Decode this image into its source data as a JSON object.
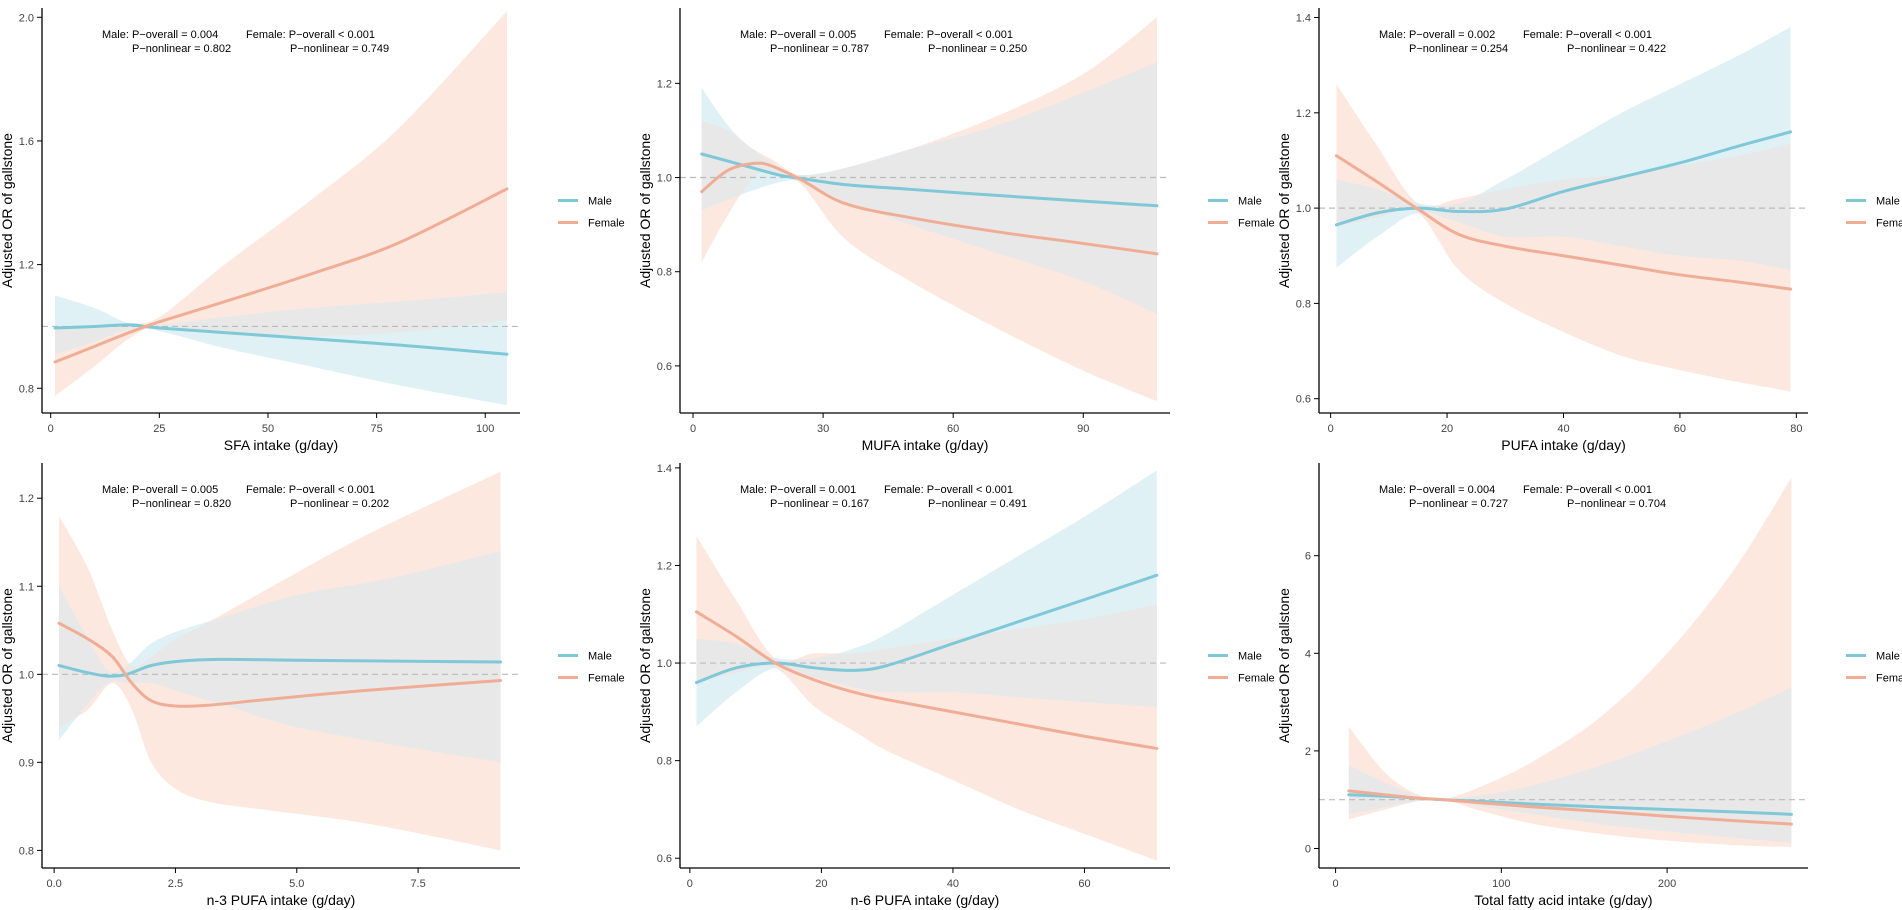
{
  "colors": {
    "male": "#7ec8d8",
    "female": "#f0ad96",
    "male_ci": "#dff1f5",
    "female_ci": "#fde8e0",
    "overlap_ci": "#e8e8e8",
    "reference": "#bbbbbb",
    "axis": "#000000"
  },
  "chart_data": [
    {
      "type": "line",
      "title": "",
      "xlabel": "SFA intake (g/day)",
      "ylabel": "Adjusted OR of gallstone",
      "xlim": [
        -2,
        108
      ],
      "ylim": [
        0.72,
        2.03
      ],
      "xticks": [
        0,
        25,
        50,
        75,
        100
      ],
      "xtick_labels": [
        "0",
        "25",
        "50",
        "75",
        "100"
      ],
      "yticks": [
        0.8,
        1.2,
        1.6,
        2.0
      ],
      "ytick_labels": [
        "0.8",
        "1.2",
        "1.6",
        "2.0"
      ],
      "reference_y": 1.0,
      "legend": {
        "position": "right",
        "entries": [
          "Male",
          "Female"
        ]
      },
      "annotation": {
        "male_overall": "Male: P−overall = 0.004",
        "male_nonlinear": "P−nonlinear = 0.802",
        "female_overall": "Female: P−overall < 0.001",
        "female_nonlinear": "P−nonlinear = 0.749"
      },
      "series": [
        {
          "name": "Male",
          "x": [
            1,
            10,
            18,
            25,
            40,
            60,
            80,
            105
          ],
          "y": [
            0.995,
            1.0,
            1.005,
            0.995,
            0.98,
            0.96,
            0.94,
            0.91
          ],
          "lower": [
            0.91,
            0.95,
            0.99,
            0.985,
            0.93,
            0.87,
            0.81,
            0.745
          ],
          "upper": [
            1.1,
            1.06,
            1.01,
            1.005,
            1.03,
            1.06,
            1.08,
            1.11
          ]
        },
        {
          "name": "Female",
          "x": [
            1,
            10,
            18,
            25,
            40,
            60,
            80,
            105
          ],
          "y": [
            0.885,
            0.935,
            0.98,
            1.015,
            1.08,
            1.17,
            1.27,
            1.445
          ],
          "lower": [
            0.775,
            0.87,
            0.96,
            1.0,
            0.98,
            0.97,
            0.98,
            1.02
          ],
          "upper": [
            1.0,
            1.0,
            1.01,
            1.03,
            1.2,
            1.41,
            1.64,
            2.02
          ]
        }
      ]
    },
    {
      "type": "line",
      "title": "",
      "xlabel": "MUFA intake (g/day)",
      "ylabel": "Adjusted OR of gallstone",
      "xlim": [
        -3,
        110
      ],
      "ylim": [
        0.5,
        1.36
      ],
      "xticks": [
        0,
        30,
        60,
        90
      ],
      "xtick_labels": [
        "0",
        "30",
        "60",
        "90"
      ],
      "yticks": [
        0.6,
        0.8,
        1.0,
        1.2
      ],
      "ytick_labels": [
        "0.6",
        "0.8",
        "1.0",
        "1.2"
      ],
      "reference_y": 1.0,
      "legend": {
        "position": "right",
        "entries": [
          "Male",
          "Female"
        ]
      },
      "annotation": {
        "male_overall": "Male: P−overall = 0.005",
        "male_nonlinear": "P−nonlinear = 0.787",
        "female_overall": "Female: P−overall < 0.001",
        "female_nonlinear": "P−nonlinear = 0.250"
      },
      "series": [
        {
          "name": "Male",
          "x": [
            2,
            10,
            20,
            25,
            35,
            50,
            70,
            90,
            107
          ],
          "y": [
            1.05,
            1.03,
            1.005,
            0.998,
            0.985,
            0.975,
            0.962,
            0.95,
            0.94
          ],
          "lower": [
            0.93,
            0.96,
            0.99,
            0.99,
            0.95,
            0.9,
            0.84,
            0.78,
            0.71
          ],
          "upper": [
            1.19,
            1.09,
            1.02,
            1.005,
            1.02,
            1.06,
            1.11,
            1.18,
            1.245
          ]
        },
        {
          "name": "Female",
          "x": [
            2,
            8,
            14,
            18,
            25,
            35,
            50,
            70,
            90,
            107
          ],
          "y": [
            0.97,
            1.015,
            1.03,
            1.025,
            0.995,
            0.945,
            0.915,
            0.885,
            0.86,
            0.838
          ],
          "lower": [
            0.82,
            0.92,
            1.0,
            1.01,
            0.985,
            0.87,
            0.78,
            0.68,
            0.59,
            0.525
          ],
          "upper": [
            1.12,
            1.1,
            1.06,
            1.04,
            1.005,
            1.02,
            1.06,
            1.13,
            1.22,
            1.34
          ]
        }
      ]
    },
    {
      "type": "line",
      "title": "",
      "xlabel": "PUFA intake (g/day)",
      "ylabel": "Adjusted OR of gallstone",
      "xlim": [
        -2,
        82
      ],
      "ylim": [
        0.57,
        1.42
      ],
      "xticks": [
        0,
        20,
        40,
        60,
        80
      ],
      "xtick_labels": [
        "0",
        "20",
        "40",
        "60",
        "80"
      ],
      "yticks": [
        0.6,
        0.8,
        1.0,
        1.2,
        1.4
      ],
      "ytick_labels": [
        "0.6",
        "0.8",
        "1.0",
        "1.2",
        "1.4"
      ],
      "reference_y": 1.0,
      "legend": {
        "position": "right",
        "entries": [
          "Male",
          "Female"
        ]
      },
      "annotation": {
        "male_overall": "Male: P−overall = 0.002",
        "male_nonlinear": "P−nonlinear = 0.254",
        "female_overall": "Female: P−overall < 0.001",
        "female_nonlinear": "P−nonlinear = 0.422"
      },
      "series": [
        {
          "name": "Male",
          "x": [
            1,
            8,
            15,
            22,
            30,
            40,
            50,
            60,
            70,
            79
          ],
          "y": [
            0.965,
            0.99,
            1.0,
            0.993,
            0.998,
            1.035,
            1.065,
            1.095,
            1.13,
            1.16
          ],
          "lower": [
            0.875,
            0.94,
            0.99,
            0.97,
            0.94,
            0.94,
            0.92,
            0.9,
            0.89,
            0.87
          ],
          "upper": [
            1.06,
            1.04,
            1.01,
            1.01,
            1.06,
            1.13,
            1.2,
            1.26,
            1.32,
            1.38
          ]
        },
        {
          "name": "Female",
          "x": [
            1,
            8,
            15,
            22,
            30,
            40,
            50,
            60,
            70,
            79
          ],
          "y": [
            1.11,
            1.055,
            0.998,
            0.945,
            0.92,
            0.9,
            0.88,
            0.86,
            0.845,
            0.83
          ],
          "lower": [
            0.96,
            0.98,
            0.99,
            0.87,
            0.8,
            0.74,
            0.69,
            0.66,
            0.635,
            0.615
          ],
          "upper": [
            1.26,
            1.13,
            1.01,
            1.02,
            1.04,
            1.06,
            1.07,
            1.09,
            1.11,
            1.135
          ]
        }
      ]
    },
    {
      "type": "line",
      "title": "",
      "xlabel": "n-3 PUFA intake (g/day)",
      "ylabel": "Adjusted OR of gallstone",
      "xlim": [
        -0.25,
        9.6
      ],
      "ylim": [
        0.78,
        1.24
      ],
      "xticks": [
        0,
        2.5,
        5,
        7.5
      ],
      "xtick_labels": [
        "0.0",
        "2.5",
        "5.0",
        "7.5"
      ],
      "yticks": [
        0.8,
        0.9,
        1.0,
        1.1,
        1.2
      ],
      "ytick_labels": [
        "0.8",
        "0.9",
        "1.0",
        "1.1",
        "1.2"
      ],
      "reference_y": 1.0,
      "legend": {
        "position": "right",
        "entries": [
          "Male",
          "Female"
        ]
      },
      "annotation": {
        "male_overall": "Male: P−overall = 0.005",
        "male_nonlinear": "P−nonlinear = 0.820",
        "female_overall": "Female: P−overall < 0.001",
        "female_nonlinear": "P−nonlinear = 0.202"
      },
      "series": [
        {
          "name": "Male",
          "x": [
            0.1,
            0.6,
            1.1,
            1.5,
            2.0,
            2.6,
            3.5,
            5.0,
            7.0,
            9.2
          ],
          "y": [
            1.01,
            1.003,
            0.998,
            1.0,
            1.01,
            1.015,
            1.017,
            1.016,
            1.015,
            1.014
          ],
          "lower": [
            0.925,
            0.96,
            0.99,
            0.99,
            0.99,
            0.98,
            0.965,
            0.94,
            0.92,
            0.9
          ],
          "upper": [
            1.1,
            1.05,
            1.005,
            1.01,
            1.035,
            1.05,
            1.065,
            1.09,
            1.11,
            1.14
          ]
        },
        {
          "name": "Female",
          "x": [
            0.1,
            0.7,
            1.2,
            1.6,
            2.0,
            2.5,
            3.2,
            4.5,
            6.5,
            9.2
          ],
          "y": [
            1.058,
            1.04,
            1.02,
            0.99,
            0.97,
            0.964,
            0.965,
            0.972,
            0.982,
            0.993
          ],
          "lower": [
            0.94,
            0.96,
            0.99,
            0.96,
            0.9,
            0.87,
            0.855,
            0.845,
            0.83,
            0.8
          ],
          "upper": [
            1.18,
            1.12,
            1.05,
            1.01,
            1.02,
            1.04,
            1.06,
            1.1,
            1.16,
            1.23
          ]
        }
      ]
    },
    {
      "type": "line",
      "title": "",
      "xlabel": "n-6 PUFA intake (g/day)",
      "ylabel": "Adjusted OR of gallstone",
      "xlim": [
        -1.5,
        73
      ],
      "ylim": [
        0.58,
        1.41
      ],
      "xticks": [
        0,
        20,
        40,
        60
      ],
      "xtick_labels": [
        "0",
        "20",
        "40",
        "60"
      ],
      "yticks": [
        0.6,
        0.8,
        1.0,
        1.2,
        1.4
      ],
      "ytick_labels": [
        "0.6",
        "0.8",
        "1.0",
        "1.2",
        "1.4"
      ],
      "reference_y": 1.0,
      "legend": {
        "position": "right",
        "entries": [
          "Male",
          "Female"
        ]
      },
      "annotation": {
        "male_overall": "Male: P−overall = 0.001",
        "male_nonlinear": "P−nonlinear = 0.167",
        "female_overall": "Female: P−overall < 0.001",
        "female_nonlinear": "P−nonlinear = 0.491"
      },
      "series": [
        {
          "name": "Male",
          "x": [
            1,
            7,
            13,
            19,
            25,
            30,
            40,
            50,
            60,
            71
          ],
          "y": [
            0.96,
            0.99,
            1.0,
            0.99,
            0.985,
            0.995,
            1.04,
            1.085,
            1.13,
            1.18
          ],
          "lower": [
            0.87,
            0.94,
            0.99,
            0.97,
            0.95,
            0.94,
            0.94,
            0.93,
            0.92,
            0.91
          ],
          "upper": [
            1.05,
            1.04,
            1.01,
            1.01,
            1.03,
            1.06,
            1.14,
            1.22,
            1.3,
            1.395
          ]
        },
        {
          "name": "Female",
          "x": [
            1,
            7,
            13,
            19,
            25,
            30,
            40,
            50,
            60,
            71
          ],
          "y": [
            1.105,
            1.055,
            1.0,
            0.965,
            0.94,
            0.925,
            0.9,
            0.875,
            0.85,
            0.825
          ],
          "lower": [
            0.96,
            0.98,
            0.99,
            0.91,
            0.86,
            0.82,
            0.76,
            0.7,
            0.65,
            0.595
          ],
          "upper": [
            1.26,
            1.13,
            1.01,
            1.02,
            1.02,
            1.03,
            1.05,
            1.07,
            1.09,
            1.12
          ]
        }
      ]
    },
    {
      "type": "line",
      "title": "",
      "xlabel": "Total fatty acid intake (g/day)",
      "ylabel": "Adjusted OR of gallstone",
      "xlim": [
        -10,
        285
      ],
      "ylim": [
        -0.4,
        7.9
      ],
      "xticks": [
        0,
        100,
        200
      ],
      "xtick_labels": [
        "0",
        "100",
        "200"
      ],
      "yticks": [
        0,
        2,
        4,
        6
      ],
      "ytick_labels": [
        "0",
        "2",
        "4",
        "6"
      ],
      "reference_y": 1.0,
      "legend": {
        "position": "right",
        "entries": [
          "Male",
          "Female"
        ]
      },
      "annotation": {
        "male_overall": "Male: P−overall = 0.004",
        "male_nonlinear": "P−nonlinear = 0.727",
        "female_overall": "Female: P−overall < 0.001",
        "female_nonlinear": "P−nonlinear = 0.704"
      },
      "series": [
        {
          "name": "Male",
          "x": [
            8,
            30,
            50,
            65,
            90,
            120,
            160,
            200,
            240,
            275
          ],
          "y": [
            1.1,
            1.07,
            1.03,
            1.0,
            0.96,
            0.91,
            0.85,
            0.8,
            0.75,
            0.7
          ],
          "lower": [
            0.7,
            0.85,
            0.97,
            0.99,
            0.85,
            0.7,
            0.5,
            0.35,
            0.22,
            0.12
          ],
          "upper": [
            1.7,
            1.35,
            1.08,
            1.01,
            1.1,
            1.3,
            1.7,
            2.2,
            2.75,
            3.3
          ]
        },
        {
          "name": "Female",
          "x": [
            8,
            30,
            50,
            65,
            90,
            120,
            160,
            200,
            240,
            275
          ],
          "y": [
            1.18,
            1.1,
            1.03,
            1.0,
            0.93,
            0.85,
            0.76,
            0.66,
            0.57,
            0.5
          ],
          "lower": [
            0.6,
            0.8,
            0.97,
            0.99,
            0.75,
            0.5,
            0.3,
            0.16,
            0.07,
            0.03
          ],
          "upper": [
            2.5,
            1.55,
            1.1,
            1.01,
            1.3,
            1.8,
            2.7,
            4.0,
            5.7,
            7.6
          ]
        }
      ]
    }
  ]
}
